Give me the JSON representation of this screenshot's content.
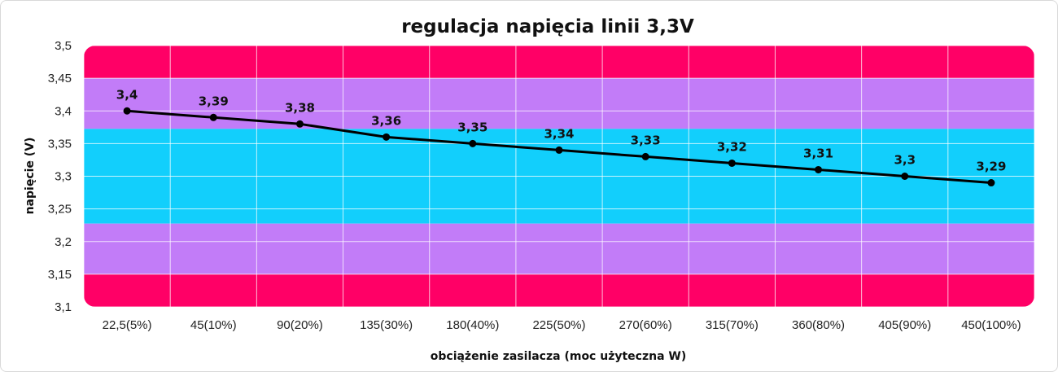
{
  "chart_data": {
    "type": "line",
    "title": "regulacja napięcia linii 3,3V",
    "xlabel": "obciążenie zasilacza (moc użyteczna W)",
    "ylabel": "napięcie (V)",
    "categories": [
      "22,5(5%)",
      "45(10%)",
      "90(20%)",
      "135(30%)",
      "180(40%)",
      "225(50%)",
      "270(60%)",
      "315(70%)",
      "360(80%)",
      "405(90%)",
      "450(100%)"
    ],
    "values": [
      3.4,
      3.39,
      3.38,
      3.36,
      3.35,
      3.34,
      3.33,
      3.32,
      3.31,
      3.3,
      3.29
    ],
    "data_labels": [
      "3,4",
      "3,39",
      "3,38",
      "3,36",
      "3,35",
      "3,34",
      "3,33",
      "3,32",
      "3,31",
      "3,3",
      "3,29"
    ],
    "ylim": [
      3.1,
      3.5
    ],
    "yticks": [
      3.5,
      3.45,
      3.4,
      3.35,
      3.3,
      3.25,
      3.2,
      3.15,
      3.1
    ],
    "ytick_labels": [
      "3,5",
      "3,45",
      "3,4",
      "3,35",
      "3,3",
      "3,25",
      "3,2",
      "3,15",
      "3,1"
    ],
    "grid": true,
    "line_color": "#000000",
    "bands": [
      {
        "from": 3.45,
        "to": 3.5,
        "color": "#ff0066"
      },
      {
        "from": 3.3725,
        "to": 3.45,
        "color": "#c27cf8"
      },
      {
        "from": 3.2275,
        "to": 3.3725,
        "color": "#12cffc"
      },
      {
        "from": 3.15,
        "to": 3.2275,
        "color": "#c27cf8"
      },
      {
        "from": 3.1,
        "to": 3.15,
        "color": "#ff0066"
      }
    ]
  }
}
